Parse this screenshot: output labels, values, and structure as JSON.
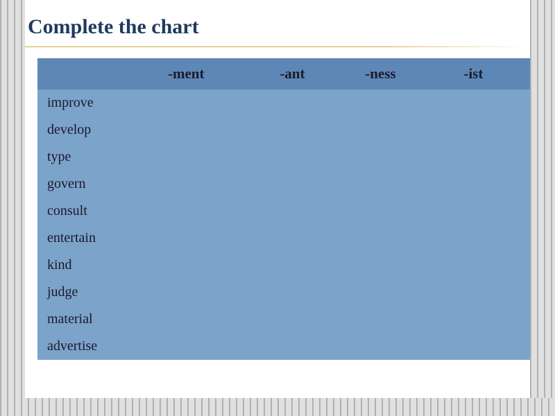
{
  "title": "Complete the chart",
  "table": {
    "columns": [
      "",
      "-ment",
      "-ant",
      "-ness",
      "-ist"
    ],
    "rows": [
      [
        "improve",
        "",
        "",
        "",
        ""
      ],
      [
        "develop",
        "",
        "",
        "",
        ""
      ],
      [
        "type",
        "",
        "",
        "",
        ""
      ],
      [
        "govern",
        "",
        "",
        "",
        ""
      ],
      [
        "consult",
        "",
        "",
        "",
        ""
      ],
      [
        "entertain",
        "",
        "",
        "",
        ""
      ],
      [
        "kind",
        "",
        "",
        "",
        ""
      ],
      [
        "judge",
        "",
        "",
        "",
        ""
      ],
      [
        "material",
        "",
        "",
        "",
        ""
      ],
      [
        "advertise",
        "",
        "",
        "",
        ""
      ]
    ],
    "header_bg": "#5d87b5",
    "body_bg": "#7ca3ca",
    "text_color": "#1a1a2e",
    "title_color": "#1e3a5f",
    "hr_color": "#d4a84a",
    "header_fontsize": 21,
    "cell_fontsize": 20,
    "title_fontsize": 30,
    "col_widths": [
      "180px",
      "auto",
      "auto",
      "auto",
      "auto"
    ]
  },
  "background": {
    "stripe_colors": [
      "#b0b0b0",
      "#e0e0e0"
    ],
    "slide_bg": "#ffffff"
  }
}
